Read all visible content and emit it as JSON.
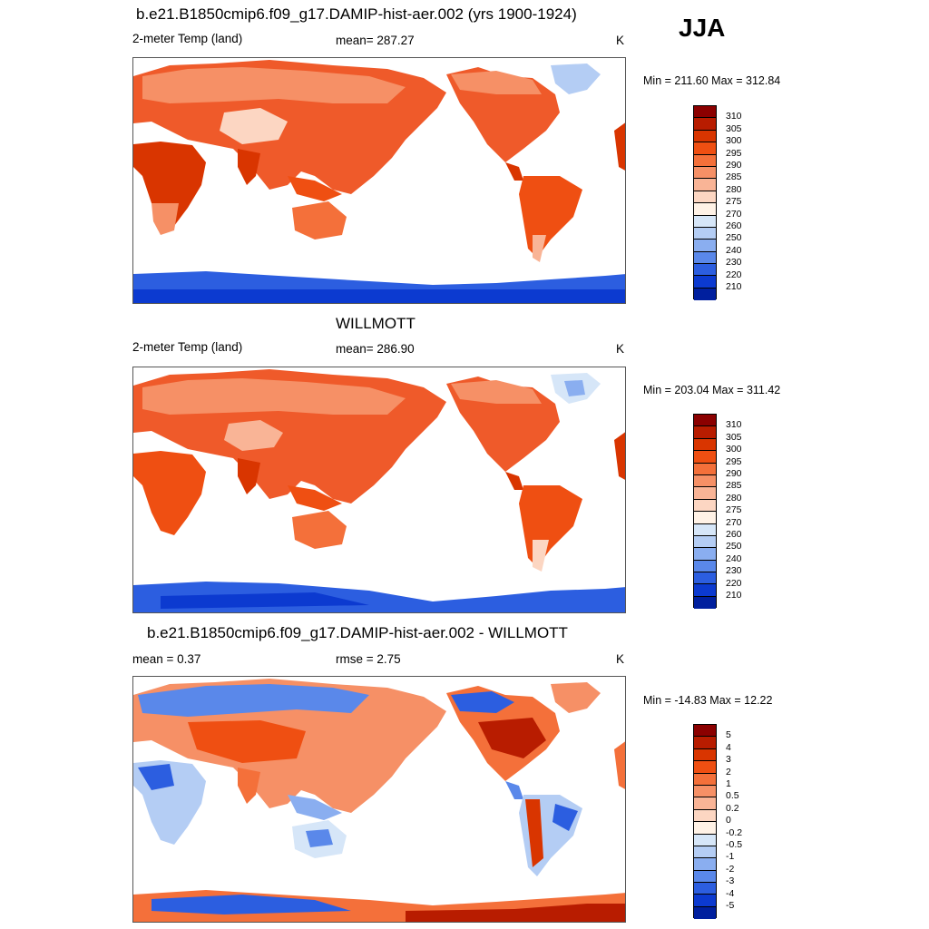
{
  "season": "JJA",
  "panels": [
    {
      "title": "b.e21.B1850cmip6.f09_g17.DAMIP-hist-aer.002 (yrs 1900-1924)",
      "left_label": "2-meter Temp (land)",
      "center_label": "mean= 287.27",
      "units": "K",
      "minmax": "Min = 211.60 Max = 312.84",
      "scale": "abs"
    },
    {
      "title": "WILLMOTT",
      "left_label": "2-meter Temp (land)",
      "center_label": "mean= 286.90",
      "units": "K",
      "minmax": "Min = 203.04 Max = 311.42",
      "scale": "abs"
    },
    {
      "title": "b.e21.B1850cmip6.f09_g17.DAMIP-hist-aer.002 - WILLMOTT",
      "left_label": "mean =   0.37",
      "center_label": "rmse =   2.75",
      "units": "K",
      "minmax": "Min = -14.83 Max =  12.22",
      "scale": "diff"
    }
  ],
  "colorbars": {
    "abs": {
      "labels": [
        "310",
        "305",
        "300",
        "295",
        "290",
        "285",
        "280",
        "275",
        "270",
        "260",
        "250",
        "240",
        "230",
        "220",
        "210"
      ],
      "colors": [
        "#8b0000",
        "#b81c00",
        "#d93500",
        "#ef4f12",
        "#f4703a",
        "#f69066",
        "#f9b496",
        "#fcd6c2",
        "#fff2e6",
        "#d6e6f8",
        "#b4cdf4",
        "#8aaef0",
        "#5a88ea",
        "#2c5ee0",
        "#0c3ad0",
        "#001f9e"
      ]
    },
    "diff": {
      "labels": [
        "5",
        "4",
        "3",
        "2",
        "1",
        "0.5",
        "0.2",
        "0",
        "-0.2",
        "-0.5",
        "-1",
        "-2",
        "-3",
        "-4",
        "-5"
      ],
      "colors": [
        "#8b0000",
        "#b81c00",
        "#d93500",
        "#ef4f12",
        "#f4703a",
        "#f69066",
        "#f9b496",
        "#fcd6c2",
        "#fff2e6",
        "#d6e6f8",
        "#b4cdf4",
        "#8aaef0",
        "#5a88ea",
        "#2c5ee0",
        "#0c3ad0",
        "#001f9e"
      ]
    }
  }
}
